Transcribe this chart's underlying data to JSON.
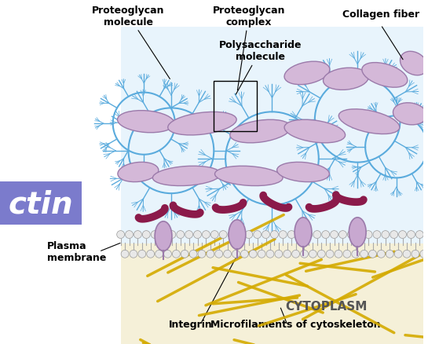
{
  "bg_outer": "#e8f4fc",
  "bg_inner": "#f5f0d8",
  "bg_white": "#ffffff",
  "membrane_color": "#d0d0d0",
  "membrane_outline": "#888888",
  "collagen_fill": "#d4b8d8",
  "collagen_outline": "#9b7aaa",
  "fibronectin_color": "#8b1a4a",
  "integrin_fill": "#c8a8d0",
  "integrin_outline": "#9b7aaa",
  "blue_circle_color": "#5aabdd",
  "yellow_fiber_color": "#d4aa00",
  "label_color": "#000000",
  "ctin_text": "ctin",
  "ctin_bg": "#7b7bcc",
  "title_labels": {
    "proteoglycan_molecule": "Proteoglycan\nmolecule",
    "proteoglycan_complex": "Proteoglycan\ncomplex",
    "polysaccharide": "Polysaccharide\nmolecule",
    "collagen_fiber": "Collagen fiber",
    "plasma_membrane": "Plasma\nmembrane",
    "integrin": "Integrin",
    "microfilaments": "Microfilaments of cytoskeleton",
    "cytoplasm": "CYTOPLASM"
  }
}
